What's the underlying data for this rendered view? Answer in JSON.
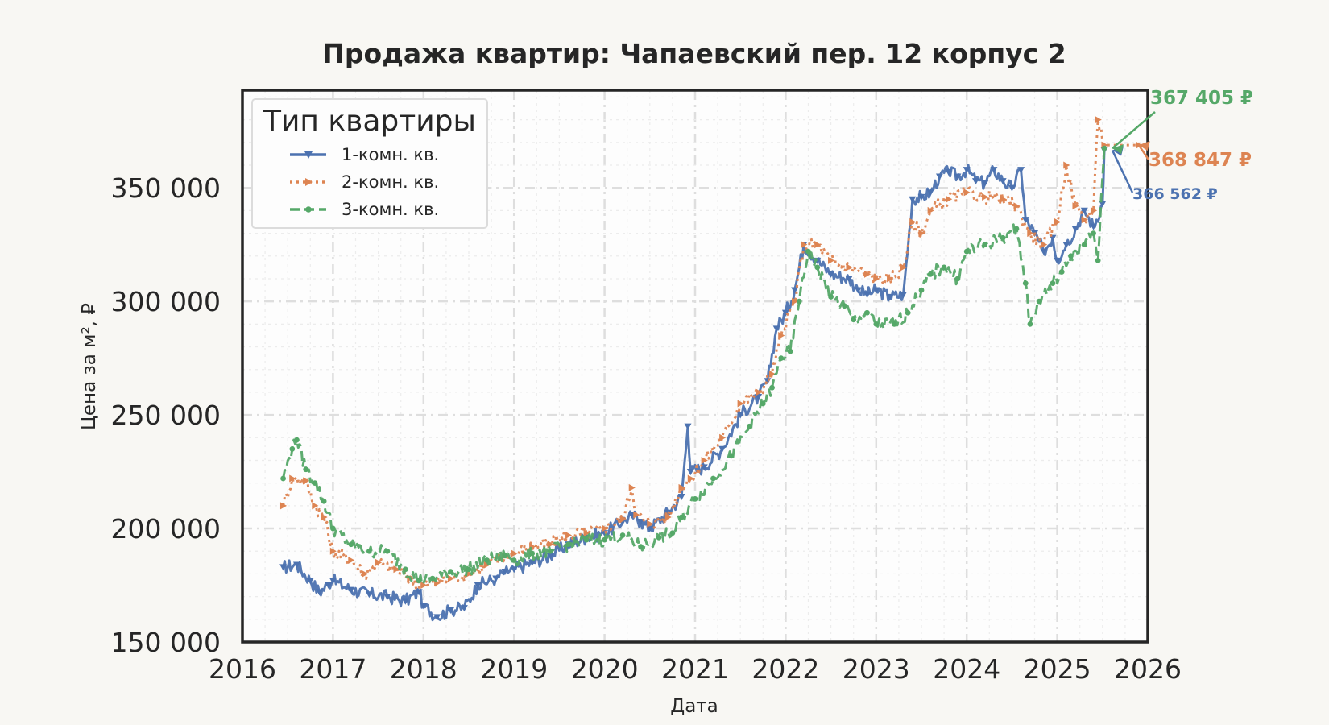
{
  "chart_data": {
    "type": "line",
    "title": "Продажа квартир: Чапаевский пер. 12 корпус 2",
    "xlabel": "Дата",
    "ylabel": "Цена за м², ₽",
    "xlim": [
      2016.0,
      2026.0
    ],
    "ylim": [
      150000,
      393000
    ],
    "xticks": [
      2016,
      2017,
      2018,
      2019,
      2020,
      2021,
      2022,
      2023,
      2024,
      2025,
      2026
    ],
    "xtick_labels": [
      "2016",
      "2017",
      "2018",
      "2019",
      "2020",
      "2021",
      "2022",
      "2023",
      "2024",
      "2025",
      "2026"
    ],
    "yticks": [
      150000,
      200000,
      250000,
      300000,
      350000
    ],
    "ytick_labels": [
      "150 000",
      "200 000",
      "250 000",
      "300 000",
      "350 000"
    ],
    "grid": true,
    "legend": {
      "title": "Тип квартиры",
      "position": "top-left"
    },
    "series": [
      {
        "name": "1-комн. кв.",
        "color": "#4c72b0",
        "linestyle": "solid",
        "marker": "triangle-down",
        "last_label": "366 562 ₽",
        "points": [
          [
            2016.45,
            183000
          ],
          [
            2016.6,
            184000
          ],
          [
            2016.75,
            177000
          ],
          [
            2016.85,
            172000
          ],
          [
            2016.95,
            175000
          ],
          [
            2017.0,
            177000
          ],
          [
            2017.2,
            173000
          ],
          [
            2017.4,
            171000
          ],
          [
            2017.6,
            170000
          ],
          [
            2017.8,
            168000
          ],
          [
            2017.95,
            172000
          ],
          [
            2018.0,
            166000
          ],
          [
            2018.15,
            161000
          ],
          [
            2018.3,
            164000
          ],
          [
            2018.45,
            165000
          ],
          [
            2018.6,
            175000
          ],
          [
            2018.8,
            178000
          ],
          [
            2018.9,
            181000
          ],
          [
            2019.0,
            182000
          ],
          [
            2019.2,
            185000
          ],
          [
            2019.4,
            188000
          ],
          [
            2019.6,
            193000
          ],
          [
            2019.8,
            196000
          ],
          [
            2020.0,
            198000
          ],
          [
            2020.2,
            203000
          ],
          [
            2020.3,
            206000
          ],
          [
            2020.4,
            203000
          ],
          [
            2020.5,
            200000
          ],
          [
            2020.7,
            207000
          ],
          [
            2020.85,
            214000
          ],
          [
            2020.92,
            245000
          ],
          [
            2020.95,
            225000
          ],
          [
            2021.1,
            227000
          ],
          [
            2021.3,
            235000
          ],
          [
            2021.5,
            250000
          ],
          [
            2021.7,
            258000
          ],
          [
            2021.8,
            265000
          ],
          [
            2021.9,
            288000
          ],
          [
            2022.0,
            295000
          ],
          [
            2022.1,
            305000
          ],
          [
            2022.2,
            325000
          ],
          [
            2022.35,
            318000
          ],
          [
            2022.5,
            312000
          ],
          [
            2022.7,
            310000
          ],
          [
            2022.8,
            305000
          ],
          [
            2022.9,
            303000
          ],
          [
            2023.0,
            305000
          ],
          [
            2023.15,
            302000
          ],
          [
            2023.3,
            303000
          ],
          [
            2023.4,
            345000
          ],
          [
            2023.5,
            346000
          ],
          [
            2023.6,
            348000
          ],
          [
            2023.7,
            355000
          ],
          [
            2023.8,
            357000
          ],
          [
            2023.9,
            355000
          ],
          [
            2024.0,
            358000
          ],
          [
            2024.1,
            353000
          ],
          [
            2024.2,
            352000
          ],
          [
            2024.3,
            358000
          ],
          [
            2024.4,
            353000
          ],
          [
            2024.5,
            350000
          ],
          [
            2024.6,
            358000
          ],
          [
            2024.65,
            336000
          ],
          [
            2024.75,
            330000
          ],
          [
            2024.85,
            322000
          ],
          [
            2024.95,
            328000
          ],
          [
            2025.0,
            318000
          ],
          [
            2025.1,
            325000
          ],
          [
            2025.2,
            332000
          ],
          [
            2025.3,
            340000
          ],
          [
            2025.4,
            333000
          ],
          [
            2025.5,
            343000
          ],
          [
            2025.52,
            366562
          ]
        ]
      },
      {
        "name": "2-комн. кв.",
        "color": "#dd8452",
        "linestyle": "dotted",
        "marker": "triangle-right",
        "last_label": "368 847 ₽",
        "points": [
          [
            2016.45,
            210000
          ],
          [
            2016.55,
            222000
          ],
          [
            2016.7,
            221000
          ],
          [
            2016.8,
            210000
          ],
          [
            2016.9,
            205000
          ],
          [
            2017.0,
            190000
          ],
          [
            2017.2,
            186000
          ],
          [
            2017.35,
            180000
          ],
          [
            2017.5,
            185000
          ],
          [
            2017.7,
            182000
          ],
          [
            2017.85,
            178000
          ],
          [
            2018.0,
            175000
          ],
          [
            2018.15,
            176000
          ],
          [
            2018.3,
            178000
          ],
          [
            2018.5,
            180000
          ],
          [
            2018.7,
            184000
          ],
          [
            2018.9,
            188000
          ],
          [
            2019.0,
            189000
          ],
          [
            2019.2,
            192000
          ],
          [
            2019.4,
            193000
          ],
          [
            2019.6,
            197000
          ],
          [
            2019.8,
            198000
          ],
          [
            2020.0,
            200000
          ],
          [
            2020.2,
            204000
          ],
          [
            2020.3,
            218000
          ],
          [
            2020.35,
            206000
          ],
          [
            2020.5,
            202000
          ],
          [
            2020.7,
            205000
          ],
          [
            2020.85,
            218000
          ],
          [
            2020.95,
            222000
          ],
          [
            2021.1,
            230000
          ],
          [
            2021.3,
            240000
          ],
          [
            2021.5,
            255000
          ],
          [
            2021.7,
            260000
          ],
          [
            2021.85,
            268000
          ],
          [
            2021.95,
            285000
          ],
          [
            2022.1,
            300000
          ],
          [
            2022.2,
            325000
          ],
          [
            2022.35,
            325000
          ],
          [
            2022.5,
            318000
          ],
          [
            2022.7,
            315000
          ],
          [
            2022.9,
            312000
          ],
          [
            2023.0,
            310000
          ],
          [
            2023.15,
            310000
          ],
          [
            2023.3,
            315000
          ],
          [
            2023.4,
            335000
          ],
          [
            2023.5,
            330000
          ],
          [
            2023.6,
            340000
          ],
          [
            2023.8,
            345000
          ],
          [
            2024.0,
            348000
          ],
          [
            2024.2,
            346000
          ],
          [
            2024.4,
            345000
          ],
          [
            2024.55,
            342000
          ],
          [
            2024.7,
            330000
          ],
          [
            2024.85,
            325000
          ],
          [
            2025.0,
            335000
          ],
          [
            2025.1,
            360000
          ],
          [
            2025.2,
            342000
          ],
          [
            2025.3,
            336000
          ],
          [
            2025.4,
            340000
          ],
          [
            2025.45,
            380000
          ],
          [
            2025.52,
            368847
          ],
          [
            2025.9,
            368847
          ]
        ]
      },
      {
        "name": "3-комн. кв.",
        "color": "#55a868",
        "linestyle": "dashed",
        "marker": "circle",
        "last_label": "367 405 ₽",
        "points": [
          [
            2016.45,
            222000
          ],
          [
            2016.55,
            235000
          ],
          [
            2016.6,
            239000
          ],
          [
            2016.7,
            226000
          ],
          [
            2016.8,
            220000
          ],
          [
            2016.9,
            212000
          ],
          [
            2017.0,
            200000
          ],
          [
            2017.2,
            193000
          ],
          [
            2017.4,
            190000
          ],
          [
            2017.6,
            190000
          ],
          [
            2017.8,
            182000
          ],
          [
            2017.95,
            177000
          ],
          [
            2018.1,
            178000
          ],
          [
            2018.3,
            181000
          ],
          [
            2018.5,
            182000
          ],
          [
            2018.7,
            186000
          ],
          [
            2018.9,
            188000
          ],
          [
            2019.0,
            186000
          ],
          [
            2019.2,
            189000
          ],
          [
            2019.4,
            190000
          ],
          [
            2019.6,
            193000
          ],
          [
            2019.8,
            195000
          ],
          [
            2020.0,
            195000
          ],
          [
            2020.2,
            197000
          ],
          [
            2020.4,
            192000
          ],
          [
            2020.6,
            196000
          ],
          [
            2020.75,
            198000
          ],
          [
            2020.85,
            205000
          ],
          [
            2021.0,
            213000
          ],
          [
            2021.2,
            222000
          ],
          [
            2021.4,
            232000
          ],
          [
            2021.6,
            245000
          ],
          [
            2021.75,
            255000
          ],
          [
            2021.85,
            262000
          ],
          [
            2021.95,
            275000
          ],
          [
            2022.05,
            278000
          ],
          [
            2022.15,
            300000
          ],
          [
            2022.25,
            322000
          ],
          [
            2022.35,
            315000
          ],
          [
            2022.5,
            302000
          ],
          [
            2022.65,
            298000
          ],
          [
            2022.75,
            292000
          ],
          [
            2022.9,
            295000
          ],
          [
            2023.0,
            290000
          ],
          [
            2023.2,
            290000
          ],
          [
            2023.35,
            295000
          ],
          [
            2023.5,
            305000
          ],
          [
            2023.6,
            312000
          ],
          [
            2023.75,
            315000
          ],
          [
            2023.9,
            310000
          ],
          [
            2024.0,
            322000
          ],
          [
            2024.2,
            325000
          ],
          [
            2024.4,
            328000
          ],
          [
            2024.55,
            332000
          ],
          [
            2024.65,
            308000
          ],
          [
            2024.7,
            290000
          ],
          [
            2024.8,
            300000
          ],
          [
            2024.95,
            308000
          ],
          [
            2025.05,
            313000
          ],
          [
            2025.15,
            320000
          ],
          [
            2025.3,
            325000
          ],
          [
            2025.4,
            330000
          ],
          [
            2025.45,
            318000
          ],
          [
            2025.52,
            367405
          ]
        ]
      }
    ]
  }
}
